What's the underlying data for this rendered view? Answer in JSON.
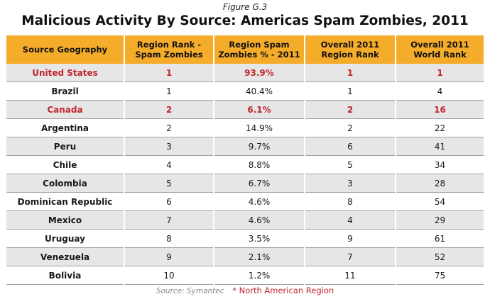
{
  "figure_label": "Figure G.3",
  "title": "Malicious Activity By Source: Americas Spam Zombies, 2011",
  "colors": {
    "header_bg": "#f5ac2b",
    "row_alt_bg": "#e6e6e6",
    "north_american_highlight": "#c0272d"
  },
  "chart_data": {
    "type": "table",
    "title": "Malicious Activity By Source: Americas Spam Zombies, 2011",
    "columns": [
      "Source Geography",
      "Region Rank - Spam Zombies",
      "Region Spam Zombies % - 2011",
      "Overall 2011 Region Rank",
      "Overall 2011 World Rank"
    ],
    "rows": [
      {
        "geography": "United States",
        "region_rank": "1",
        "region_pct": "93.9%",
        "overall_region_rank": "1",
        "world_rank": "1",
        "north_american": true
      },
      {
        "geography": "Brazil",
        "region_rank": "1",
        "region_pct": "40.4%",
        "overall_region_rank": "1",
        "world_rank": "4",
        "north_american": false
      },
      {
        "geography": "Canada",
        "region_rank": "2",
        "region_pct": "6.1%",
        "overall_region_rank": "2",
        "world_rank": "16",
        "north_american": true
      },
      {
        "geography": "Argentina",
        "region_rank": "2",
        "region_pct": "14.9%",
        "overall_region_rank": "2",
        "world_rank": "22",
        "north_american": false
      },
      {
        "geography": "Peru",
        "region_rank": "3",
        "region_pct": "9.7%",
        "overall_region_rank": "6",
        "world_rank": "41",
        "north_american": false
      },
      {
        "geography": "Chile",
        "region_rank": "4",
        "region_pct": "8.8%",
        "overall_region_rank": "5",
        "world_rank": "34",
        "north_american": false
      },
      {
        "geography": "Colombia",
        "region_rank": "5",
        "region_pct": "6.7%",
        "overall_region_rank": "3",
        "world_rank": "28",
        "north_american": false
      },
      {
        "geography": "Dominican Republic",
        "region_rank": "6",
        "region_pct": "4.6%",
        "overall_region_rank": "8",
        "world_rank": "54",
        "north_american": false
      },
      {
        "geography": "Mexico",
        "region_rank": "7",
        "region_pct": "4.6%",
        "overall_region_rank": "4",
        "world_rank": "29",
        "north_american": false
      },
      {
        "geography": "Uruguay",
        "region_rank": "8",
        "region_pct": "3.5%",
        "overall_region_rank": "9",
        "world_rank": "61",
        "north_american": false
      },
      {
        "geography": "Venezuela",
        "region_rank": "9",
        "region_pct": "2.1%",
        "overall_region_rank": "7",
        "world_rank": "52",
        "north_american": false
      },
      {
        "geography": "Bolivia",
        "region_rank": "10",
        "region_pct": "1.2%",
        "overall_region_rank": "11",
        "world_rank": "75",
        "north_american": false
      }
    ]
  },
  "footer": {
    "source": "Source: Symantec",
    "note": "* North American Region"
  }
}
